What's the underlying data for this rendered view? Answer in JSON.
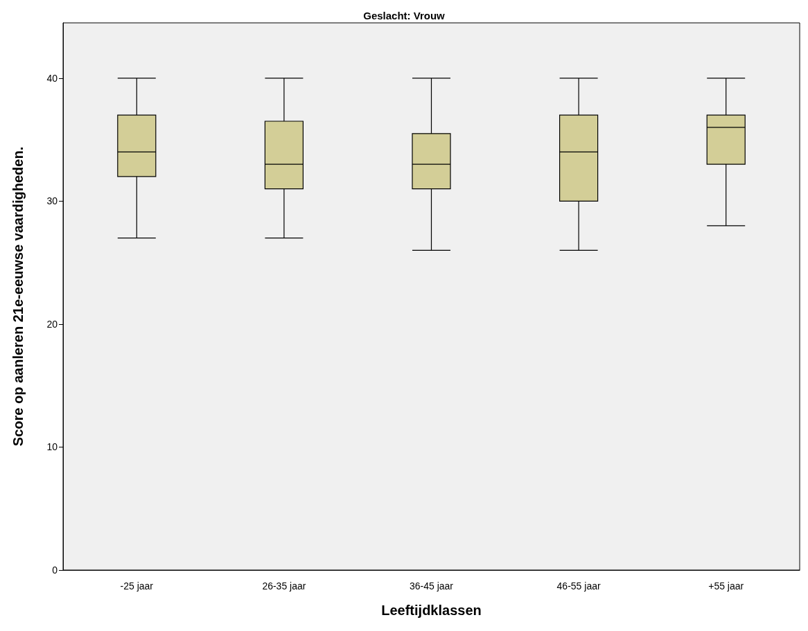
{
  "chart_data": {
    "type": "box",
    "title": "Geslacht: Vrouw",
    "xlabel": "Leeftijdklassen",
    "ylabel": "Score op aanleren 21e-eeuwse vaardigheden.",
    "categories": [
      "-25 jaar",
      "26-35 jaar",
      "36-45 jaar",
      "46-55 jaar",
      "+55 jaar"
    ],
    "series": [
      {
        "color": "#d3ce97",
        "boxes": [
          {
            "low": 27,
            "q1": 32,
            "median": 34,
            "q3": 37,
            "high": 40
          },
          {
            "low": 27,
            "q1": 31,
            "median": 33,
            "q3": 36.5,
            "high": 40
          },
          {
            "low": 26,
            "q1": 31,
            "median": 33,
            "q3": 35.5,
            "high": 40
          },
          {
            "low": 26,
            "q1": 30,
            "median": 34,
            "q3": 37,
            "high": 40
          },
          {
            "low": 28,
            "q1": 33,
            "median": 36,
            "q3": 37,
            "high": 40
          }
        ]
      }
    ],
    "ylim": [
      0,
      44.5
    ],
    "yticks": [
      0,
      10,
      20,
      30,
      40
    ],
    "grid": false
  }
}
